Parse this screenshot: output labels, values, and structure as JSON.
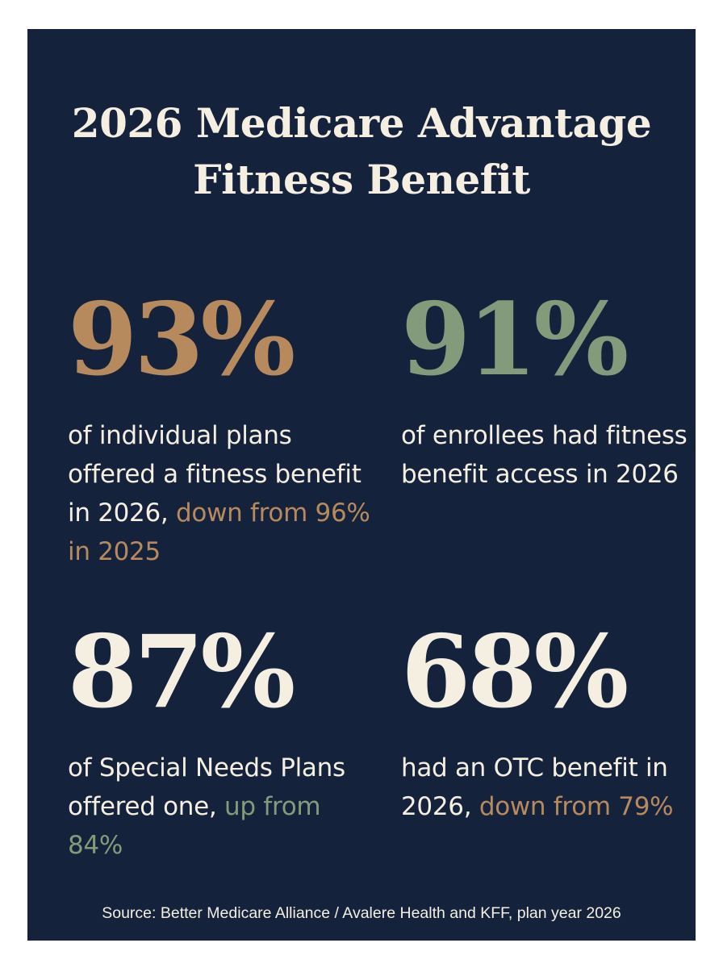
{
  "title": {
    "line1": "2026 Medicare Advantage",
    "line2": "Fitness Benefit"
  },
  "stats": [
    {
      "value": "93%",
      "text": "of individual plans offered a fitness benefit in 2026,",
      "highlight": "down from 96% in 2025",
      "value_color": "#b78a5e",
      "highlight_color": "#b78a5e"
    },
    {
      "value": "91%",
      "text": "of enrollees had fitness benefit access in 2026",
      "value_color": "#849b7b"
    },
    {
      "value": "87%",
      "text": "of Special Needs Plans offered one,",
      "highlight": "up from 84%",
      "value_color": "#f5efe2",
      "highlight_color": "#849b7b"
    },
    {
      "value": "68%",
      "text": "had an OTC benefit in 2026,",
      "highlight": "down from 79%",
      "value_color": "#f5efe2",
      "highlight_color": "#b78a5e"
    }
  ],
  "source": "Source: Better Medicare Alliance / Avalere Health and KFF, plan year 2026",
  "colors": {
    "background": "#14223b",
    "cream": "#f5efe2",
    "tan": "#b78a5e",
    "sage": "#849b7b"
  }
}
